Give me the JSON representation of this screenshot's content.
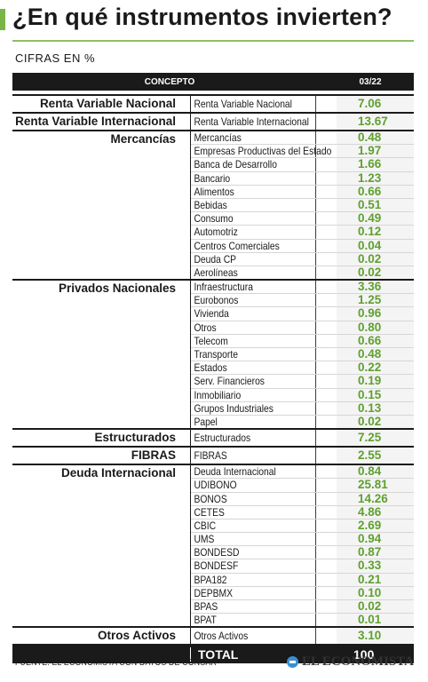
{
  "header": {
    "title": "¿En qué instrumentos invierten?",
    "subtitle": "CIFRAS EN %"
  },
  "table": {
    "concept_header": "CONCEPTO",
    "period_header": "03/22",
    "groups": [
      {
        "name": "Renta Variable Nacional",
        "items": [
          {
            "name": "Renta Variable Nacional",
            "value": "7.06"
          }
        ]
      },
      {
        "name": "Renta Variable Internacional",
        "items": [
          {
            "name": "Renta Variable Internacional",
            "value": "13.67"
          }
        ]
      },
      {
        "name": "Mercancías",
        "items": [
          {
            "name": "Mercancías",
            "value": "0.48"
          },
          {
            "name": "Empresas Productivas del Estado",
            "value": "1.97"
          },
          {
            "name": "Banca de Desarrollo",
            "value": "1.66"
          },
          {
            "name": "Bancario",
            "value": "1.23"
          },
          {
            "name": "Alimentos",
            "value": "0.66"
          },
          {
            "name": "Bebidas",
            "value": "0.51"
          },
          {
            "name": "Consumo",
            "value": "0.49"
          },
          {
            "name": "Automotriz",
            "value": "0.12"
          },
          {
            "name": "Centros Comerciales",
            "value": "0.04"
          },
          {
            "name": "Deuda CP",
            "value": "0.02"
          },
          {
            "name": "Aerolíneas",
            "value": "0.02"
          }
        ]
      },
      {
        "name": "Privados Nacionales",
        "items": [
          {
            "name": "Infraestructura",
            "value": "3.36"
          },
          {
            "name": "Eurobonos",
            "value": "1.25"
          },
          {
            "name": "Vivienda",
            "value": "0.96"
          },
          {
            "name": "Otros",
            "value": "0.80"
          },
          {
            "name": "Telecom",
            "value": "0.66"
          },
          {
            "name": "Transporte",
            "value": "0.48"
          },
          {
            "name": "Estados",
            "value": "0.22"
          },
          {
            "name": "Serv. Financieros",
            "value": "0.19"
          },
          {
            "name": "Inmobiliario",
            "value": "0.15"
          },
          {
            "name": "Grupos Industriales",
            "value": "0.13"
          },
          {
            "name": "Papel",
            "value": "0.02"
          }
        ]
      },
      {
        "name": "Estructurados",
        "items": [
          {
            "name": "Estructurados",
            "value": "7.25"
          }
        ]
      },
      {
        "name": "FIBRAS",
        "items": [
          {
            "name": "FIBRAS",
            "value": "2.55"
          }
        ]
      },
      {
        "name": "Deuda Internacional",
        "items": [
          {
            "name": "Deuda Internacional",
            "value": "0.84"
          },
          {
            "name": "UDIBONO",
            "value": "25.81"
          },
          {
            "name": "BONOS",
            "value": "14.26"
          },
          {
            "name": "CETES",
            "value": "4.86"
          },
          {
            "name": "CBIC",
            "value": "2.69"
          },
          {
            "name": "UMS",
            "value": "0.94"
          },
          {
            "name": "BONDESD",
            "value": "0.87"
          },
          {
            "name": "BONDESF",
            "value": "0.33"
          },
          {
            "name": "BPA182",
            "value": "0.21"
          },
          {
            "name": "DEPBMX",
            "value": "0.10"
          },
          {
            "name": "BPAS",
            "value": "0.02"
          },
          {
            "name": "BPAT",
            "value": "0.01"
          }
        ]
      },
      {
        "name": "Otros Activos",
        "items": [
          {
            "name": "Otros Activos",
            "value": "3.10"
          }
        ]
      }
    ],
    "total_label": "TOTAL",
    "total_value": "100"
  },
  "footer": {
    "source": "FUENTE: EL ECONOMISTA CON DATOS DE CONSAR",
    "brand": "EL ECONOMISTA"
  },
  "colors": {
    "accent": "#7ab547",
    "value_green": "#5fa02f",
    "header_bg": "#1a1a1a"
  }
}
